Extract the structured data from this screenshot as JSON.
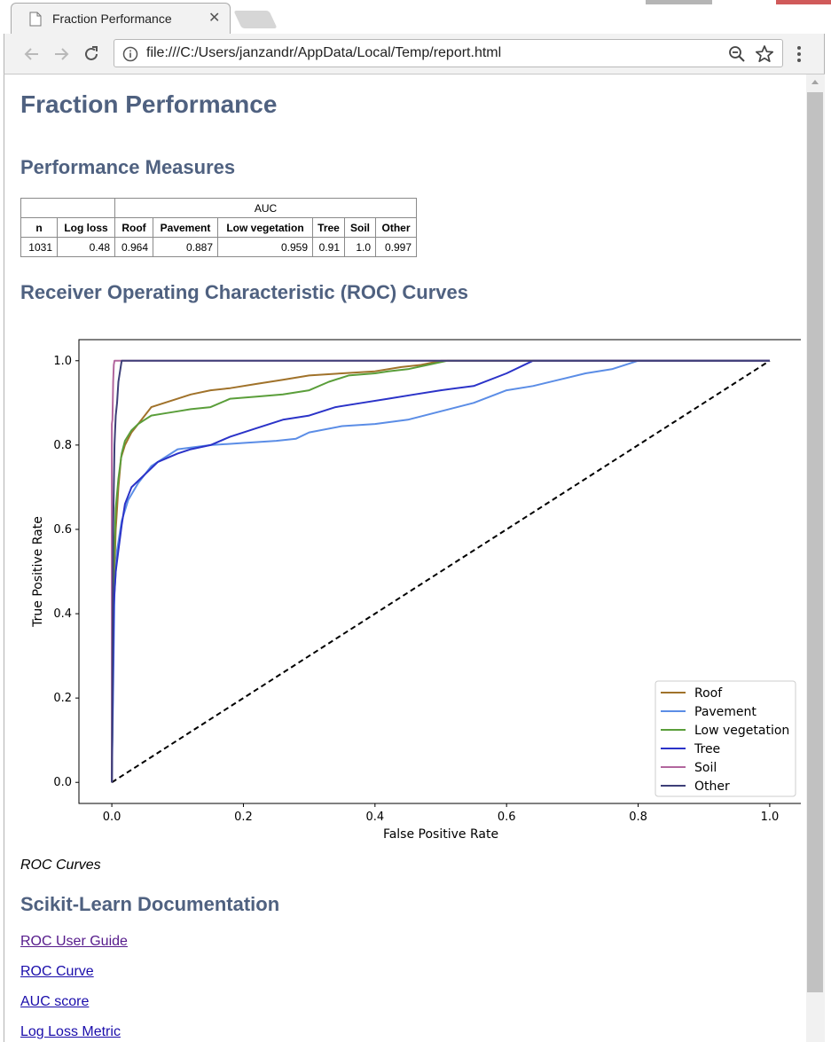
{
  "browser": {
    "tab_title": "Fraction Performance",
    "tab_close": "✕",
    "url": "file:///C:/Users/janzandr/AppData/Local/Temp/report.html"
  },
  "page": {
    "title": "Fraction Performance",
    "performance_heading": "Performance Measures",
    "roc_heading": "Receiver Operating Characteristic (ROC) Curves",
    "caption": "ROC Curves",
    "docs_heading": "Scikit-Learn Documentation",
    "links": [
      "ROC User Guide",
      "ROC Curve",
      "AUC score",
      "Log Loss Metric"
    ]
  },
  "table": {
    "group_header": "AUC",
    "columns": [
      "n",
      "Log loss",
      "Roof",
      "Pavement",
      "Low vegetation",
      "Tree",
      "Soil",
      "Other"
    ],
    "rows": [
      [
        "1031",
        "0.48",
        "0.964",
        "0.887",
        "0.959",
        "0.91",
        "1.0",
        "0.997"
      ]
    ]
  },
  "chart_data": {
    "type": "line",
    "title": "",
    "xlabel": "False Positive Rate",
    "ylabel": "True Positive Rate",
    "xlim": [
      -0.05,
      1.05
    ],
    "ylim": [
      -0.05,
      1.05
    ],
    "xticks": [
      "0.0",
      "0.2",
      "0.4",
      "0.6",
      "0.8",
      "1.0"
    ],
    "yticks": [
      "0.0",
      "0.2",
      "0.4",
      "0.6",
      "0.8",
      "1.0"
    ],
    "grid": false,
    "legend_position": "lower-right",
    "series": [
      {
        "name": "Roof",
        "color": "#a0722a",
        "x": [
          0,
          0.003,
          0.006,
          0.01,
          0.014,
          0.02,
          0.03,
          0.04,
          0.05,
          0.06,
          0.08,
          0.1,
          0.12,
          0.15,
          0.18,
          0.22,
          0.26,
          0.3,
          0.35,
          0.4,
          0.44,
          0.47,
          0.5,
          1.0
        ],
        "y": [
          0,
          0.45,
          0.6,
          0.7,
          0.77,
          0.8,
          0.83,
          0.85,
          0.87,
          0.89,
          0.9,
          0.91,
          0.92,
          0.93,
          0.935,
          0.945,
          0.955,
          0.965,
          0.97,
          0.975,
          0.985,
          0.99,
          1.0,
          1.0
        ]
      },
      {
        "name": "Pavement",
        "color": "#5b8de6",
        "x": [
          0,
          0.004,
          0.008,
          0.015,
          0.025,
          0.04,
          0.06,
          0.08,
          0.1,
          0.15,
          0.2,
          0.25,
          0.28,
          0.3,
          0.35,
          0.4,
          0.45,
          0.5,
          0.55,
          0.6,
          0.64,
          0.68,
          0.72,
          0.76,
          0.8,
          1.0
        ],
        "y": [
          0,
          0.45,
          0.55,
          0.62,
          0.67,
          0.71,
          0.75,
          0.77,
          0.79,
          0.8,
          0.805,
          0.81,
          0.815,
          0.83,
          0.845,
          0.85,
          0.86,
          0.88,
          0.9,
          0.93,
          0.94,
          0.955,
          0.97,
          0.98,
          1.0,
          1.0
        ]
      },
      {
        "name": "Low vegetation",
        "color": "#5a9e3a",
        "x": [
          0,
          0.003,
          0.006,
          0.01,
          0.015,
          0.02,
          0.03,
          0.04,
          0.05,
          0.06,
          0.08,
          0.1,
          0.12,
          0.15,
          0.18,
          0.22,
          0.26,
          0.3,
          0.33,
          0.36,
          0.4,
          0.42,
          0.45,
          0.48,
          0.51,
          1.0
        ],
        "y": [
          0,
          0.5,
          0.65,
          0.72,
          0.78,
          0.81,
          0.835,
          0.85,
          0.86,
          0.87,
          0.875,
          0.88,
          0.885,
          0.89,
          0.91,
          0.915,
          0.92,
          0.93,
          0.95,
          0.965,
          0.97,
          0.975,
          0.98,
          0.99,
          1.0,
          1.0
        ]
      },
      {
        "name": "Tree",
        "color": "#2b33c8",
        "x": [
          0,
          0.003,
          0.006,
          0.01,
          0.015,
          0.02,
          0.03,
          0.05,
          0.07,
          0.1,
          0.12,
          0.15,
          0.18,
          0.22,
          0.26,
          0.3,
          0.34,
          0.38,
          0.42,
          0.46,
          0.5,
          0.55,
          0.6,
          0.64,
          1.0
        ],
        "y": [
          0,
          0.42,
          0.5,
          0.55,
          0.61,
          0.66,
          0.7,
          0.73,
          0.76,
          0.78,
          0.79,
          0.8,
          0.82,
          0.84,
          0.86,
          0.87,
          0.89,
          0.9,
          0.91,
          0.92,
          0.93,
          0.94,
          0.97,
          1.0,
          1.0
        ]
      },
      {
        "name": "Soil",
        "color": "#b2669e",
        "x": [
          0,
          0.0,
          0.001,
          0.002,
          0.003,
          0.004,
          1.0
        ],
        "y": [
          0,
          0.85,
          0.86,
          0.95,
          0.99,
          1.0,
          1.0
        ]
      },
      {
        "name": "Other",
        "color": "#3e3f78",
        "x": [
          0,
          0.001,
          0.002,
          0.004,
          0.006,
          0.008,
          0.01,
          0.015,
          1.0
        ],
        "y": [
          0,
          0.3,
          0.6,
          0.8,
          0.87,
          0.9,
          0.95,
          1.0,
          1.0
        ]
      }
    ],
    "reference_line": {
      "x": [
        0,
        1
      ],
      "y": [
        0,
        1
      ],
      "color": "#000000",
      "style": "dashed"
    }
  }
}
